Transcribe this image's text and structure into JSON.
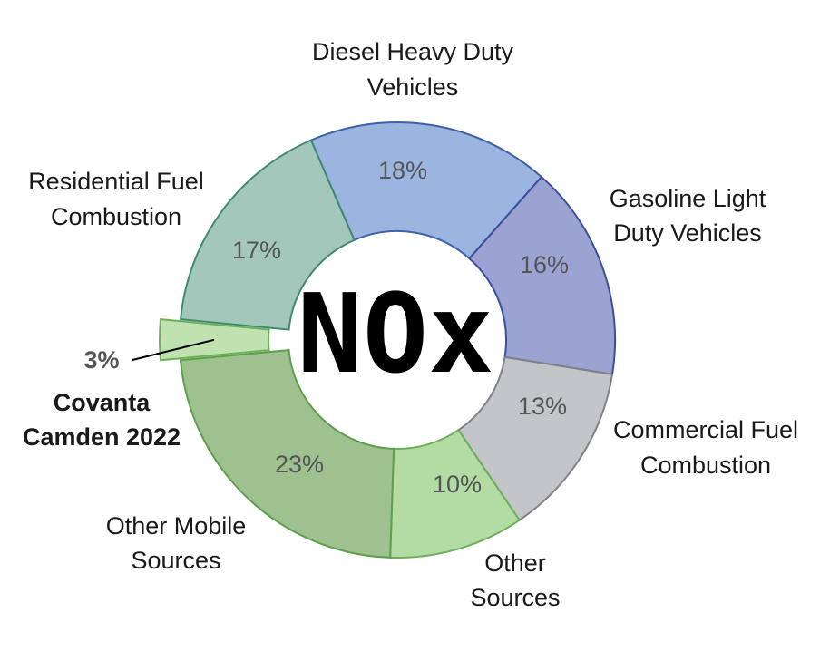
{
  "chart_data": {
    "type": "pie",
    "center_label": "NOx",
    "slices": [
      {
        "label": [
          "Diesel Heavy Duty",
          "Vehicles"
        ],
        "value": 18,
        "value_label": "18%",
        "color": "#9bb4e0",
        "stroke": "#3e62a8"
      },
      {
        "label": [
          "Gasoline Light",
          "Duty Vehicles"
        ],
        "value": 16,
        "value_label": "16%",
        "color": "#9ba3d2",
        "stroke": "#3a4f9c"
      },
      {
        "label": [
          "Commercial Fuel",
          "Combustion"
        ],
        "value": 13,
        "value_label": "13%",
        "color": "#c3c5c9",
        "stroke": "#808288"
      },
      {
        "label": [
          "Other",
          "Sources"
        ],
        "value": 10,
        "value_label": "10%",
        "color": "#b3dca4",
        "stroke": "#6fad5a"
      },
      {
        "label": [
          "Other Mobile",
          "Sources"
        ],
        "value": 23,
        "value_label": "23%",
        "color": "#9ec18f",
        "stroke": "#5e9e4e"
      },
      {
        "label": [
          "Covanta",
          "Camden 2022"
        ],
        "value": 3,
        "value_label": "3%",
        "color": "#bfe2b0",
        "stroke": "#6fb05a",
        "highlight": true
      },
      {
        "label": [
          "Residential Fuel",
          "Combustion"
        ],
        "value": 17,
        "value_label": "17%",
        "color": "#a3c8bb",
        "stroke": "#3f8a70"
      }
    ]
  }
}
